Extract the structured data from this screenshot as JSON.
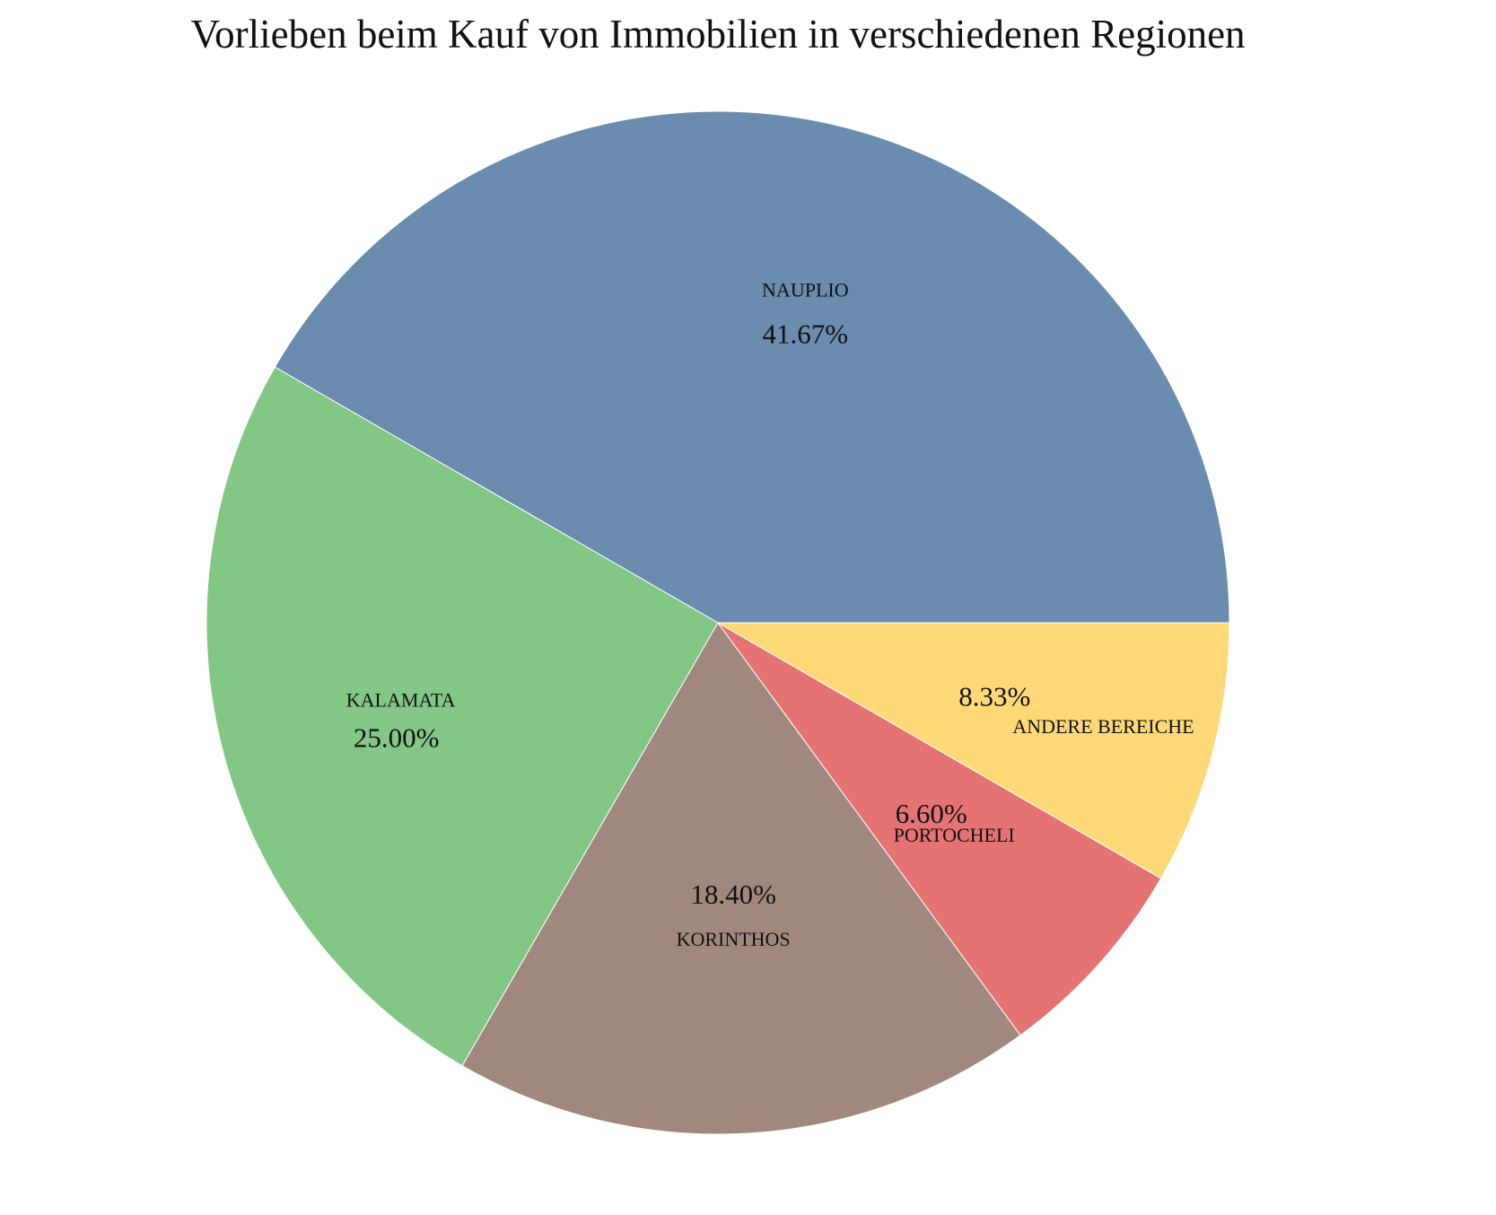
{
  "chart_data": {
    "type": "pie",
    "title": "Vorlieben beim Kauf von Immobilien in verschiedenen Regionen",
    "start": "3 o'clock, clockwise order reversed (counter-clockwise)",
    "slices": [
      {
        "label": "NAUPLIO",
        "value": 41.67,
        "value_label": "41.67%",
        "color": "#6a8caf"
      },
      {
        "label": "KALAMATA",
        "value": 25.0,
        "value_label": "25.00%",
        "color": "#82c785"
      },
      {
        "label": "KORINTHOS",
        "value": 18.4,
        "value_label": "18.40%",
        "color": "#a1887f"
      },
      {
        "label": "PORTOCHELI",
        "value": 6.6,
        "value_label": "6.60%",
        "color": "#e57373"
      },
      {
        "label": "ANDERE BEREICHE",
        "value": 8.33,
        "value_label": "8.33%",
        "color": "#ffd977"
      }
    ]
  }
}
